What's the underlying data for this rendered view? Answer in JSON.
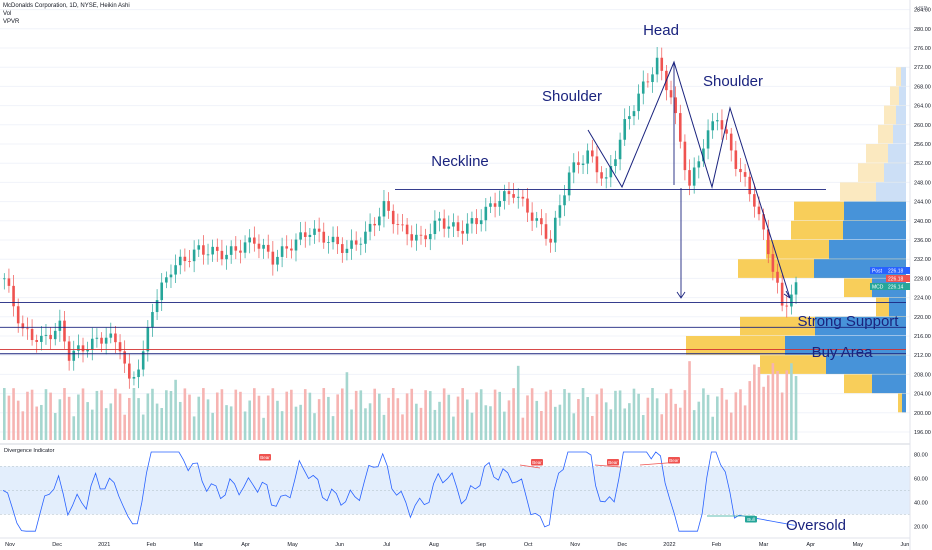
{
  "header": {
    "symbol_line": "McDonalds Corporation, 1D, NYSE, Heikin Ashi",
    "vol_label": "Vol",
    "vpvr_label": "VPVR"
  },
  "indicator": {
    "title": "Divergence Indicator"
  },
  "annotations": {
    "head": "Head",
    "shoulder_left": "Shoulder",
    "shoulder_right": "Shoulder",
    "neckline": "Neckline",
    "strong_support": "Strong Support",
    "buy_area": "Buy Area",
    "oversold": "Oversold"
  },
  "price_tags": [
    {
      "label": "Post",
      "value": "226.18",
      "color": "#2962ff"
    },
    {
      "label": "",
      "value": "226.18",
      "color": "#ef5350"
    },
    {
      "label": "MCD",
      "value": "226.14",
      "color": "#26a69a"
    }
  ],
  "chart_data": {
    "type": "candlestick",
    "price_axis": {
      "unit": "USD",
      "ticks": [
        196,
        200,
        204,
        208,
        212,
        216,
        220,
        224,
        228,
        232,
        236,
        240,
        244,
        248,
        252,
        256,
        260,
        264,
        268,
        272,
        276,
        280,
        284
      ]
    },
    "time_axis": [
      "Nov",
      "Dec",
      "2021",
      "Feb",
      "Mar",
      "Apr",
      "May",
      "Jun",
      "Jul",
      "Aug",
      "Sep",
      "Oct",
      "Nov",
      "Dec",
      "2022",
      "Feb",
      "Mar",
      "Apr",
      "May",
      "Jun"
    ],
    "price_path": [
      [
        0,
        228
      ],
      [
        4,
        217
      ],
      [
        8,
        215
      ],
      [
        12,
        218
      ],
      [
        14,
        212
      ],
      [
        18,
        214
      ],
      [
        22,
        216
      ],
      [
        25,
        214
      ],
      [
        27,
        206
      ],
      [
        30,
        212
      ],
      [
        32,
        222
      ],
      [
        36,
        230
      ],
      [
        42,
        234
      ],
      [
        48,
        233
      ],
      [
        54,
        236
      ],
      [
        58,
        232
      ],
      [
        62,
        235
      ],
      [
        66,
        238
      ],
      [
        70,
        236
      ],
      [
        74,
        234
      ],
      [
        78,
        237
      ],
      [
        82,
        243
      ],
      [
        86,
        238
      ],
      [
        90,
        236
      ],
      [
        94,
        240
      ],
      [
        98,
        238
      ],
      [
        102,
        240
      ],
      [
        106,
        244
      ],
      [
        110,
        246
      ],
      [
        114,
        241
      ],
      [
        118,
        236
      ],
      [
        122,
        250
      ],
      [
        126,
        254
      ],
      [
        130,
        248
      ],
      [
        134,
        260
      ],
      [
        138,
        268
      ],
      [
        141,
        273
      ],
      [
        144,
        266
      ],
      [
        148,
        247
      ],
      [
        151,
        256
      ],
      [
        154,
        262
      ],
      [
        158,
        252
      ],
      [
        162,
        244
      ],
      [
        165,
        234
      ],
      [
        168,
        222
      ],
      [
        171,
        226
      ]
    ],
    "horizontal_levels": [
      {
        "name": "Neckline",
        "price": 246.5
      },
      {
        "name": "Strong Support",
        "price": 223
      },
      {
        "name": "Buy Area",
        "price": 217.8,
        "color": "blue"
      },
      {
        "name": "Buy Area",
        "price": 213.2,
        "color": "red"
      },
      {
        "name": "Buy Area",
        "price": 212.3,
        "color": "blue"
      }
    ],
    "volume_profile": [
      {
        "price": 270,
        "width": 10
      },
      {
        "price": 266,
        "width": 16
      },
      {
        "price": 262,
        "width": 22
      },
      {
        "price": 258,
        "width": 28
      },
      {
        "price": 254,
        "width": 40
      },
      {
        "price": 250,
        "width": 48
      },
      {
        "price": 246,
        "width": 66
      },
      {
        "price": 242,
        "width": 112
      },
      {
        "price": 238,
        "width": 115
      },
      {
        "price": 234,
        "width": 140
      },
      {
        "price": 230,
        "width": 168
      },
      {
        "price": 226,
        "width": 62
      },
      {
        "price": 222,
        "width": 30
      },
      {
        "price": 218,
        "width": 166
      },
      {
        "price": 214,
        "width": 220
      },
      {
        "price": 210,
        "width": 146
      },
      {
        "price": 206,
        "width": 62
      },
      {
        "price": 202,
        "width": 8
      }
    ],
    "divergence_indicator": {
      "axis_ticks": [
        20,
        40,
        60,
        80
      ],
      "band": [
        30,
        70
      ],
      "signal_labels": [
        "Bear",
        "Bear",
        "Bear",
        "Bear",
        "Bull"
      ]
    }
  }
}
